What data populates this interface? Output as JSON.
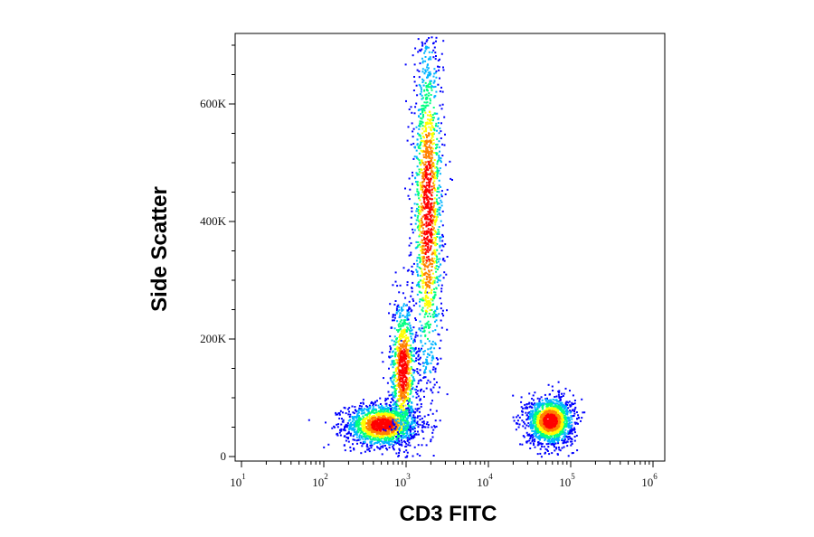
{
  "chart_data": {
    "type": "scatter",
    "style": "flow-cytometry density dot plot",
    "xlabel": "CD3 FITC",
    "ylabel": "Side Scatter",
    "x_scale": "log",
    "xlim": [
      10,
      1000000
    ],
    "ylim": [
      0,
      720000
    ],
    "x_ticks": [
      {
        "value": 10,
        "base": "10",
        "exp": "1"
      },
      {
        "value": 100,
        "base": "10",
        "exp": "2"
      },
      {
        "value": 1000,
        "base": "10",
        "exp": "3"
      },
      {
        "value": 10000,
        "base": "10",
        "exp": "4"
      },
      {
        "value": 100000,
        "base": "10",
        "exp": "5"
      },
      {
        "value": 1000000,
        "base": "10",
        "exp": "6"
      }
    ],
    "y_ticks": [
      {
        "value": 0,
        "label": "0"
      },
      {
        "value": 200000,
        "label": "200K"
      },
      {
        "value": 400000,
        "label": "400K"
      },
      {
        "value": 600000,
        "label": "600K"
      }
    ],
    "populations": [
      {
        "x_center": 500,
        "y_center": 55000,
        "x_spread_decades": 0.22,
        "y_spread": 18000,
        "density": "high"
      },
      {
        "x_center": 900,
        "y_center": 150000,
        "x_spread_decades": 0.08,
        "y_spread": 60000,
        "density": "medium"
      },
      {
        "x_center": 1800,
        "y_center": 420000,
        "x_spread_decades": 0.09,
        "y_spread": 150000,
        "density": "high"
      },
      {
        "x_center": 55000,
        "y_center": 62000,
        "x_spread_decades": 0.14,
        "y_spread": 20000,
        "density": "high"
      }
    ],
    "colormap": [
      "#0000ff",
      "#00b4ff",
      "#00ff80",
      "#ffff00",
      "#ff8000",
      "#ff0000"
    ],
    "grid": false,
    "legend": "none"
  }
}
